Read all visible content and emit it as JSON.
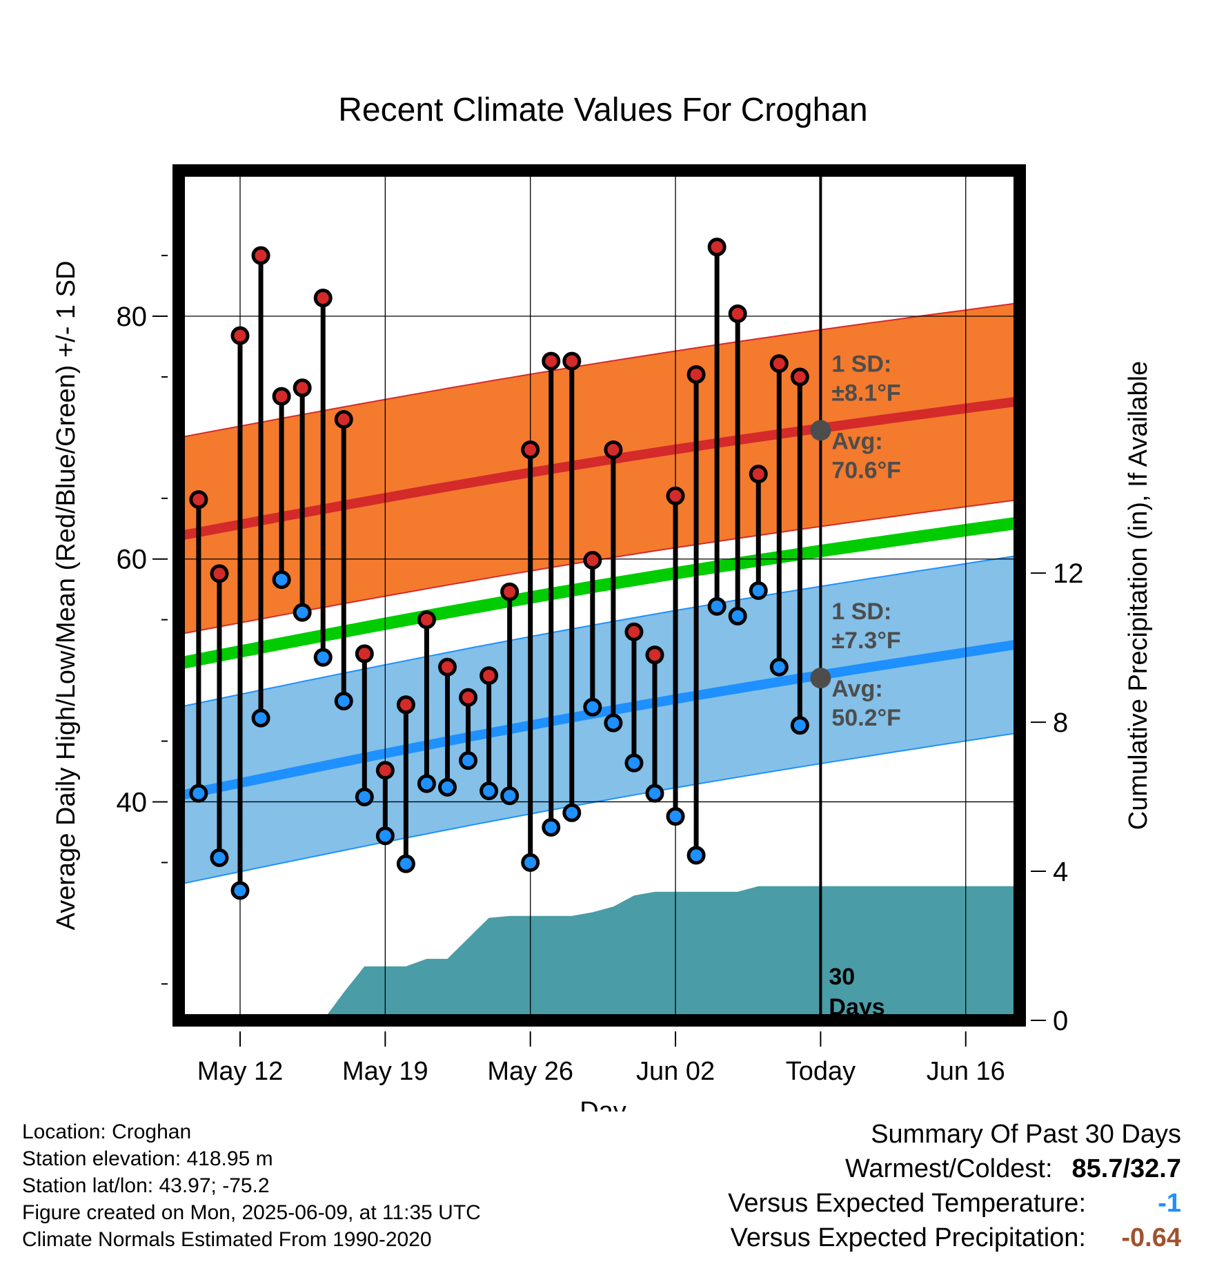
{
  "chart_data": {
    "type": "line",
    "title": "Recent Climate Values For Croghan",
    "xlabel": "Day",
    "ylabel": "Average Daily High/Low/Mean (Red/Blue/Green) +/- 1 SD",
    "y2label": "Cumulative Precipitation (in), If Available",
    "ylim": [
      22,
      92
    ],
    "y_ticks": [
      40,
      60,
      80
    ],
    "y2lim": [
      0,
      22.8
    ],
    "y2_ticks": [
      0,
      4,
      8,
      12
    ],
    "x_range": [
      "2025-05-08",
      "2025-06-21"
    ],
    "x_tick_labels": [
      {
        "date": "2025-05-12",
        "label": "May 12"
      },
      {
        "date": "2025-05-19",
        "label": "May 19"
      },
      {
        "date": "2025-05-26",
        "label": "May 26"
      },
      {
        "date": "2025-06-02",
        "label": "Jun 02"
      },
      {
        "date": "2025-06-09",
        "label": "Today"
      },
      {
        "date": "2025-06-16",
        "label": "Jun 16"
      }
    ],
    "today": "2025-06-09",
    "today_label": [
      "30",
      "Days"
    ],
    "daily": [
      {
        "date": "2025-05-10",
        "high": 64.9,
        "low": 40.7
      },
      {
        "date": "2025-05-11",
        "high": 58.8,
        "low": 35.4
      },
      {
        "date": "2025-05-12",
        "high": 78.4,
        "low": 32.7
      },
      {
        "date": "2025-05-13",
        "high": 85.0,
        "low": 46.9
      },
      {
        "date": "2025-05-14",
        "high": 73.4,
        "low": 58.3
      },
      {
        "date": "2025-05-15",
        "high": 74.1,
        "low": 55.6
      },
      {
        "date": "2025-05-16",
        "high": 81.5,
        "low": 51.9
      },
      {
        "date": "2025-05-17",
        "high": 71.5,
        "low": 48.3
      },
      {
        "date": "2025-05-18",
        "high": 52.2,
        "low": 40.4
      },
      {
        "date": "2025-05-19",
        "high": 42.6,
        "low": 37.2
      },
      {
        "date": "2025-05-20",
        "high": 48.0,
        "low": 34.9
      },
      {
        "date": "2025-05-21",
        "high": 55.0,
        "low": 41.5
      },
      {
        "date": "2025-05-22",
        "high": 51.1,
        "low": 41.2
      },
      {
        "date": "2025-05-23",
        "high": 48.6,
        "low": 43.4
      },
      {
        "date": "2025-05-24",
        "high": 50.4,
        "low": 40.9
      },
      {
        "date": "2025-05-25",
        "high": 57.3,
        "low": 40.5
      },
      {
        "date": "2025-05-26",
        "high": 69.0,
        "low": 35.0
      },
      {
        "date": "2025-05-27",
        "high": 76.3,
        "low": 37.9
      },
      {
        "date": "2025-05-28",
        "high": 76.3,
        "low": 39.1
      },
      {
        "date": "2025-05-29",
        "high": 59.9,
        "low": 47.8
      },
      {
        "date": "2025-05-30",
        "high": 69.0,
        "low": 46.5
      },
      {
        "date": "2025-05-31",
        "high": 54.0,
        "low": 43.2
      },
      {
        "date": "2025-06-01",
        "high": 52.1,
        "low": 40.7
      },
      {
        "date": "2025-06-02",
        "high": 65.2,
        "low": 38.8
      },
      {
        "date": "2025-06-03",
        "high": 75.2,
        "low": 35.6
      },
      {
        "date": "2025-06-04",
        "high": 85.7,
        "low": 56.1
      },
      {
        "date": "2025-06-05",
        "high": 80.2,
        "low": 55.3
      },
      {
        "date": "2025-06-06",
        "high": 67.0,
        "low": 57.4
      },
      {
        "date": "2025-06-07",
        "high": 76.1,
        "low": 51.1
      },
      {
        "date": "2025-06-08",
        "high": 75.0,
        "low": 46.3
      }
    ],
    "normal_high": {
      "start": 61.9,
      "end": 73.0,
      "sd": 8.1
    },
    "normal_low": {
      "start": 40.5,
      "end": 53.0,
      "sd": 7.3
    },
    "normal_mean": {
      "start": 51.4,
      "end": 63.0
    },
    "precip_cumulative": [
      {
        "date": "2025-05-14",
        "value": 0.0
      },
      {
        "date": "2025-05-15",
        "value": 0.0
      },
      {
        "date": "2025-05-16",
        "value": 0.0
      },
      {
        "date": "2025-05-17",
        "value": 0.75
      },
      {
        "date": "2025-05-18",
        "value": 1.45
      },
      {
        "date": "2025-05-19",
        "value": 1.45
      },
      {
        "date": "2025-05-20",
        "value": 1.45
      },
      {
        "date": "2025-05-21",
        "value": 1.65
      },
      {
        "date": "2025-05-22",
        "value": 1.65
      },
      {
        "date": "2025-05-23",
        "value": 2.2
      },
      {
        "date": "2025-05-24",
        "value": 2.75
      },
      {
        "date": "2025-05-25",
        "value": 2.8
      },
      {
        "date": "2025-05-26",
        "value": 2.8
      },
      {
        "date": "2025-05-27",
        "value": 2.8
      },
      {
        "date": "2025-05-28",
        "value": 2.8
      },
      {
        "date": "2025-05-29",
        "value": 2.9
      },
      {
        "date": "2025-05-30",
        "value": 3.05
      },
      {
        "date": "2025-05-31",
        "value": 3.35
      },
      {
        "date": "2025-06-01",
        "value": 3.45
      },
      {
        "date": "2025-06-02",
        "value": 3.45
      },
      {
        "date": "2025-06-03",
        "value": 3.45
      },
      {
        "date": "2025-06-04",
        "value": 3.45
      },
      {
        "date": "2025-06-05",
        "value": 3.45
      },
      {
        "date": "2025-06-06",
        "value": 3.6
      },
      {
        "date": "2025-06-21",
        "value": 3.6
      }
    ],
    "annotations": [
      {
        "id": "high",
        "lines": [
          "1 SD:",
          "±8.1°F",
          "Avg:",
          "70.6°F"
        ],
        "avg": 70.6
      },
      {
        "id": "low",
        "lines": [
          "1 SD:",
          "±7.3°F",
          "Avg:",
          "50.2°F"
        ],
        "avg": 50.2
      }
    ],
    "colors": {
      "high_band": "#f47a2e",
      "high_line": "#d42a2a",
      "low_band": "#84c0e8",
      "low_line": "#1e90ff",
      "mean_line": "#00cc00",
      "precip": "#4a9ca6",
      "high_dot": "#d42a2a",
      "low_dot": "#1e90ff",
      "annotation_text": "#4d4d4d"
    }
  },
  "footer": {
    "location": "Location: Croghan",
    "elevation": "Station elevation: 418.95 m",
    "latlon": "Station lat/lon: 43.97; -75.2",
    "created": "Figure created on Mon, 2025-06-09, at 11:35 UTC",
    "normals": "Climate Normals Estimated From 1990-2020"
  },
  "summary": {
    "heading": "Summary Of Past 30 Days",
    "warmest_label": "Warmest/Coldest:",
    "warmest_value": "85.7/32.7",
    "temp_label": "Versus Expected Temperature:",
    "temp_value": "-1",
    "temp_color": "#1e90ff",
    "precip_label": "Versus Expected Precipitation:",
    "precip_value": "-0.64",
    "precip_color": "#a0522d"
  }
}
